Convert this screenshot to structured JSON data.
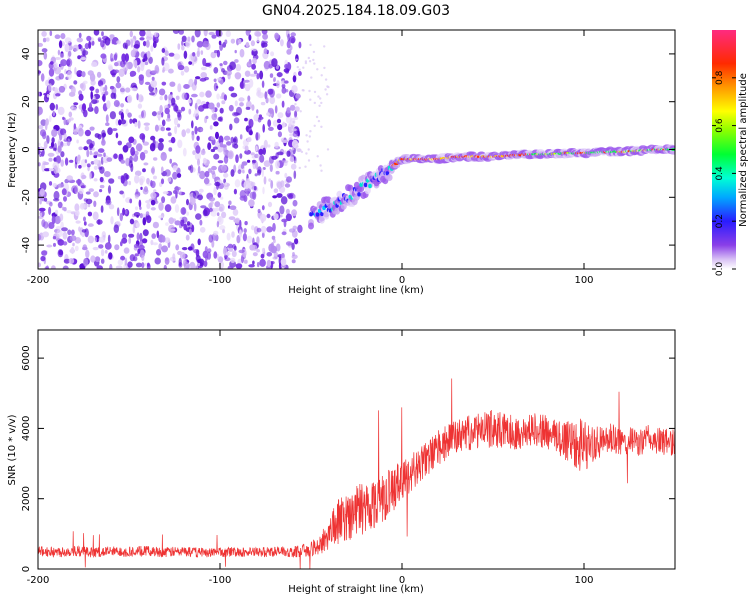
{
  "title": "GN04.2025.184.18.09.G03",
  "colors": {
    "snr_line": "#ee3333",
    "scatter": "#7a2ee6",
    "axis": "#000000"
  },
  "chart_data": [
    {
      "type": "heatmap",
      "xlabel": "Height of straight line (km)",
      "ylabel": "Frequency (Hz)",
      "xlim": [
        -200,
        150
      ],
      "ylim": [
        -50,
        50
      ],
      "xticks": [
        -200,
        -100,
        0,
        100
      ],
      "yticks": [
        -40,
        -20,
        0,
        20,
        40
      ],
      "colorbar": {
        "label": "Normalized spectral amplitude",
        "range": [
          0,
          1
        ],
        "ticks": [
          0.0,
          0.2,
          0.4,
          0.6,
          0.8
        ],
        "tick_labels": [
          "0.0",
          "0.2",
          "0.4",
          "0.6",
          "0.8"
        ],
        "colormap": [
          "#ffffff",
          "#c9a8f2",
          "#7a2ee6",
          "#3322ff",
          "#00ccff",
          "#00ff66",
          "#ccff00",
          "#ffcc00",
          "#ff3300",
          "#ff2266"
        ]
      },
      "ridge": {
        "x": [
          -50,
          -40,
          -30,
          -20,
          -10,
          0,
          10,
          20,
          30,
          40,
          50,
          60,
          70,
          80,
          90,
          100,
          110,
          120,
          130,
          140,
          150
        ],
        "y": [
          -28,
          -24,
          -20,
          -15,
          -10,
          -4,
          -4,
          -4,
          -3,
          -3,
          -3,
          -2.5,
          -2,
          -2,
          -1.5,
          -1.5,
          -1,
          -1,
          -0.5,
          0,
          0
        ]
      },
      "noise_region_x": [
        -200,
        -60
      ]
    },
    {
      "type": "line",
      "xlabel": "Height of straight line (km)",
      "ylabel": "SNR (10 * v/v)",
      "xlim": [
        -200,
        150
      ],
      "ylim": [
        0,
        6800
      ],
      "xticks": [
        -200,
        -100,
        0,
        100
      ],
      "yticks": [
        0,
        2000,
        4000,
        6000
      ],
      "series": [
        {
          "x": [
            -200,
            -190,
            -180,
            -170,
            -160,
            -150,
            -140,
            -130,
            -120,
            -110,
            -100,
            -90,
            -80,
            -70,
            -60,
            -50,
            -45,
            -40,
            -35,
            -30,
            -25,
            -20,
            -15,
            -10,
            -5,
            0,
            5,
            10,
            15,
            20,
            25,
            30,
            35,
            40,
            45,
            50,
            55,
            60,
            65,
            70,
            75,
            80,
            85,
            90,
            95,
            100,
            105,
            110,
            115,
            120,
            125,
            130,
            135,
            140,
            145,
            150
          ],
          "y": [
            500,
            480,
            520,
            470,
            500,
            490,
            510,
            480,
            500,
            470,
            480,
            490,
            470,
            500,
            480,
            560,
            700,
            1050,
            1350,
            1500,
            1650,
            1800,
            1900,
            2050,
            2250,
            2500,
            2750,
            2950,
            3200,
            3450,
            3600,
            3750,
            3850,
            3900,
            3950,
            4000,
            3950,
            3900,
            3850,
            3950,
            4000,
            3850,
            3750,
            3700,
            3650,
            3500,
            3550,
            3600,
            3700,
            3600,
            3650,
            3600,
            3700,
            3650,
            3600,
            3650
          ],
          "spread": [
            150,
            150,
            160,
            140,
            150,
            150,
            150,
            140,
            150,
            140,
            140,
            140,
            140,
            150,
            150,
            200,
            350,
            500,
            650,
            700,
            750,
            800,
            750,
            700,
            650,
            600,
            550,
            500,
            500,
            500,
            500,
            500,
            500,
            500,
            500,
            550,
            500,
            500,
            450,
            450,
            500,
            500,
            500,
            700,
            800,
            800,
            500,
            450,
            450,
            400,
            400,
            400,
            400,
            400,
            400,
            400
          ]
        }
      ]
    }
  ]
}
